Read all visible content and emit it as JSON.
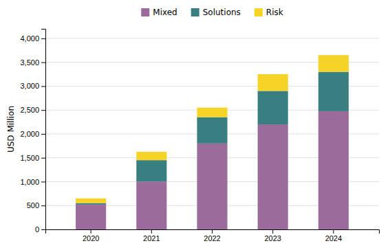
{
  "chart_data": {
    "type": "bar",
    "stacked": true,
    "categories": [
      "2020",
      "2021",
      "2022",
      "2023",
      "2024"
    ],
    "series": [
      {
        "name": "Mixed",
        "color": "#9b6b9b",
        "values": [
          520,
          1000,
          1800,
          2200,
          2475
        ]
      },
      {
        "name": "Solutions",
        "color": "#3a7f7f",
        "values": [
          30,
          450,
          550,
          700,
          825
        ]
      },
      {
        "name": "Risk",
        "color": "#f5d327",
        "values": [
          100,
          175,
          200,
          350,
          350
        ]
      }
    ],
    "ylabel": "USD Million",
    "ylim": [
      0,
      4200
    ],
    "yticks": [
      0,
      500,
      {
        "value": 1000,
        "label": "1,000"
      },
      {
        "value": 1500,
        "label": "1,500"
      },
      {
        "value": 2000,
        "label": "2,000"
      },
      {
        "value": 2500,
        "label": "2,500"
      },
      {
        "value": 3000,
        "label": "3,000"
      },
      {
        "value": 3500,
        "label": "3,500"
      },
      {
        "value": 4000,
        "label": "4,000"
      }
    ],
    "grid": true,
    "legend": "top"
  }
}
